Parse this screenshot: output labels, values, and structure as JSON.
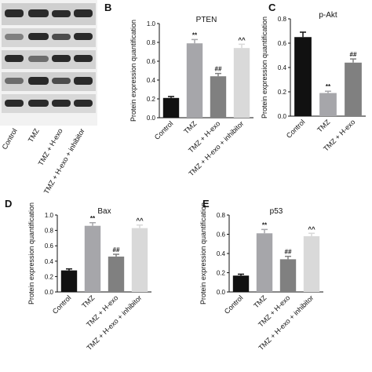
{
  "blot": {
    "lanes": [
      "Control",
      "TMZ",
      "TMZ + H-exo",
      "TMZ + H-exo + inhibitor"
    ]
  },
  "chart_data": [
    {
      "type": "bar",
      "panel": "B",
      "title": "PTEN",
      "y_label": "Protein expression quantification",
      "categories": [
        "Control",
        "TMZ",
        "TMZ + H-exo",
        "TMZ + H-exo + inhibitor"
      ],
      "values": [
        0.21,
        0.79,
        0.44,
        0.74
      ],
      "errors": [
        0.015,
        0.04,
        0.03,
        0.04
      ],
      "annotations": [
        null,
        "**",
        "##",
        "^^"
      ],
      "colors": [
        "#111111",
        "#a6a6aa",
        "#808080",
        "#d9d9d9"
      ],
      "ylim": [
        0,
        1.0
      ],
      "yticks": [
        {
          "value": 0,
          "label": "0.0"
        },
        0.2,
        0.4,
        0.6,
        0.8,
        {
          "value": 1.0,
          "label": "1.0"
        }
      ]
    },
    {
      "type": "bar",
      "panel": "C",
      "title": "p-Akt",
      "y_label": "Protein expression quantification",
      "categories": [
        "Control",
        "TMZ",
        "TMZ + H-exo"
      ],
      "values": [
        0.65,
        0.19,
        0.44
      ],
      "errors": [
        0.04,
        0.015,
        0.03
      ],
      "annotations": [
        null,
        "**",
        "##"
      ],
      "colors": [
        "#111111",
        "#a6a6aa",
        "#808080"
      ],
      "ylim": [
        0,
        0.8
      ],
      "yticks": [
        {
          "value": 0,
          "label": "0.0"
        },
        0.2,
        0.4,
        0.6,
        0.8
      ]
    },
    {
      "type": "bar",
      "panel": "D",
      "title": "Bax",
      "y_label": "Protein expression quantification",
      "categories": [
        "Control",
        "TMZ",
        "TMZ + H-exo",
        "TMZ + H-exo + inhibitor"
      ],
      "values": [
        0.28,
        0.86,
        0.46,
        0.83
      ],
      "errors": [
        0.02,
        0.04,
        0.03,
        0.04
      ],
      "annotations": [
        null,
        "**",
        "##",
        "^^"
      ],
      "colors": [
        "#111111",
        "#a6a6aa",
        "#808080",
        "#d9d9d9"
      ],
      "ylim": [
        0,
        1.0
      ],
      "yticks": [
        {
          "value": 0,
          "label": "0.0"
        },
        0.2,
        0.4,
        0.6,
        0.8,
        {
          "value": 1.0,
          "label": "1.0"
        }
      ]
    },
    {
      "type": "bar",
      "panel": "E",
      "title": "p53",
      "y_label": "Protein expression quantification",
      "categories": [
        "Control",
        "TMZ",
        "TMZ + H-exo",
        "TMZ + H-exo + inhibitor"
      ],
      "values": [
        0.17,
        0.61,
        0.34,
        0.58
      ],
      "errors": [
        0.015,
        0.04,
        0.03,
        0.03
      ],
      "annotations": [
        null,
        "**",
        "##",
        "^^"
      ],
      "colors": [
        "#111111",
        "#a6a6aa",
        "#808080",
        "#d9d9d9"
      ],
      "ylim": [
        0,
        0.8
      ],
      "yticks": [
        {
          "value": 0,
          "label": "0.0"
        },
        0.2,
        0.4,
        0.6,
        0.8
      ]
    }
  ]
}
